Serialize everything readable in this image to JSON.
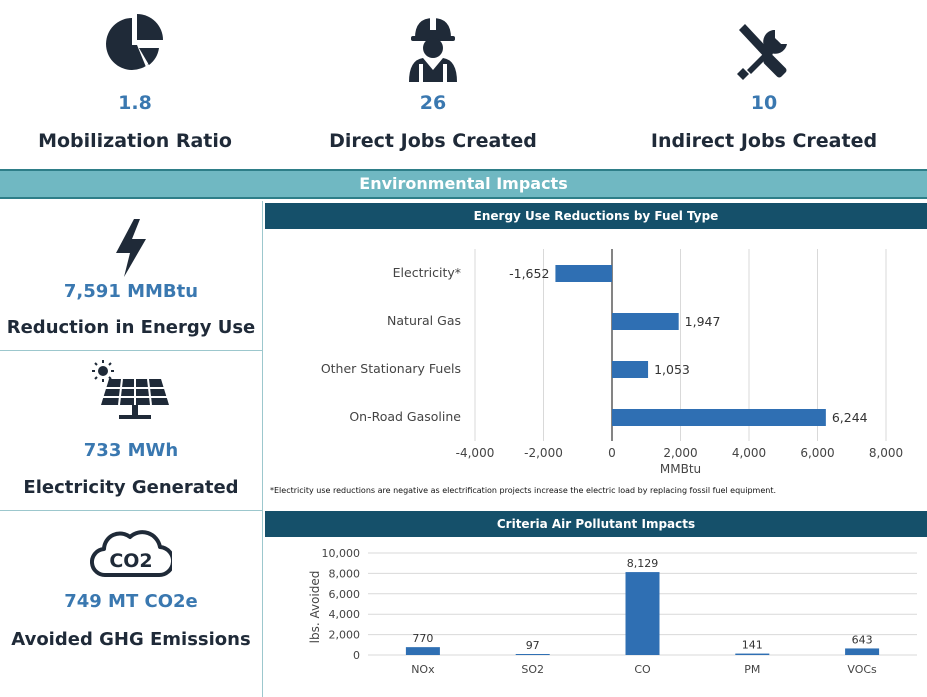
{
  "stats": [
    {
      "value": "1.8",
      "label": "Mobilization Ratio",
      "icon": "pie-chart-icon"
    },
    {
      "value": "26",
      "label": "Direct Jobs Created",
      "icon": "worker-icon"
    },
    {
      "value": "10",
      "label": "Indirect Jobs Created",
      "icon": "tools-icon"
    }
  ],
  "banner": {
    "title": "Environmental Impacts"
  },
  "impacts": [
    {
      "value": "7,591 MMBtu",
      "label": "Reduction in Energy Use",
      "icon": "lightning-icon"
    },
    {
      "value": "733 MWh",
      "label": "Electricity Generated",
      "icon": "solar-panel-icon"
    },
    {
      "value": "749 MT CO2e",
      "label": "Avoided GHG Emissions",
      "icon": "co2-cloud-icon",
      "icon_text": "CO2"
    }
  ],
  "colors": {
    "accent": "#3a78b0",
    "header": "#15506a",
    "banner": "#70b8c2",
    "bar": "#2f6fb3",
    "navy": "#1f2a38"
  },
  "footnote": "*Electricity use reductions are negative as electrification projects increase the electric load by replacing fossil fuel equipment.",
  "chart_data": [
    {
      "type": "bar",
      "orientation": "horizontal",
      "title": "Energy Use Reductions by Fuel Type",
      "categories": [
        "Electricity*",
        "Natural Gas",
        "Other Stationary Fuels",
        "On-Road Gasoline"
      ],
      "values": [
        -1652,
        1947,
        1053,
        6244
      ],
      "value_labels": [
        "-1,652",
        "1,947",
        "1,053",
        "6,244"
      ],
      "xlabel": "MMBtu",
      "xlim": [
        -4000,
        8000
      ],
      "xticks": [
        -4000,
        -2000,
        0,
        2000,
        4000,
        6000,
        8000
      ],
      "xtick_labels": [
        "-4,000",
        "-2,000",
        "0",
        "2,000",
        "4,000",
        "6,000",
        "8,000"
      ],
      "grid": true
    },
    {
      "type": "bar",
      "title": "Criteria Air Pollutant Impacts",
      "categories": [
        "NOx",
        "SO2",
        "CO",
        "PM",
        "VOCs"
      ],
      "values": [
        770,
        97,
        8129,
        141,
        643
      ],
      "value_labels": [
        "770",
        "97",
        "8,129",
        "141",
        "643"
      ],
      "ylabel": "lbs. Avoided",
      "ylim": [
        0,
        10000
      ],
      "yticks": [
        0,
        2000,
        4000,
        6000,
        8000,
        10000
      ],
      "ytick_labels": [
        "0",
        "2,000",
        "4,000",
        "6,000",
        "8,000",
        "10,000"
      ],
      "grid": true
    }
  ]
}
